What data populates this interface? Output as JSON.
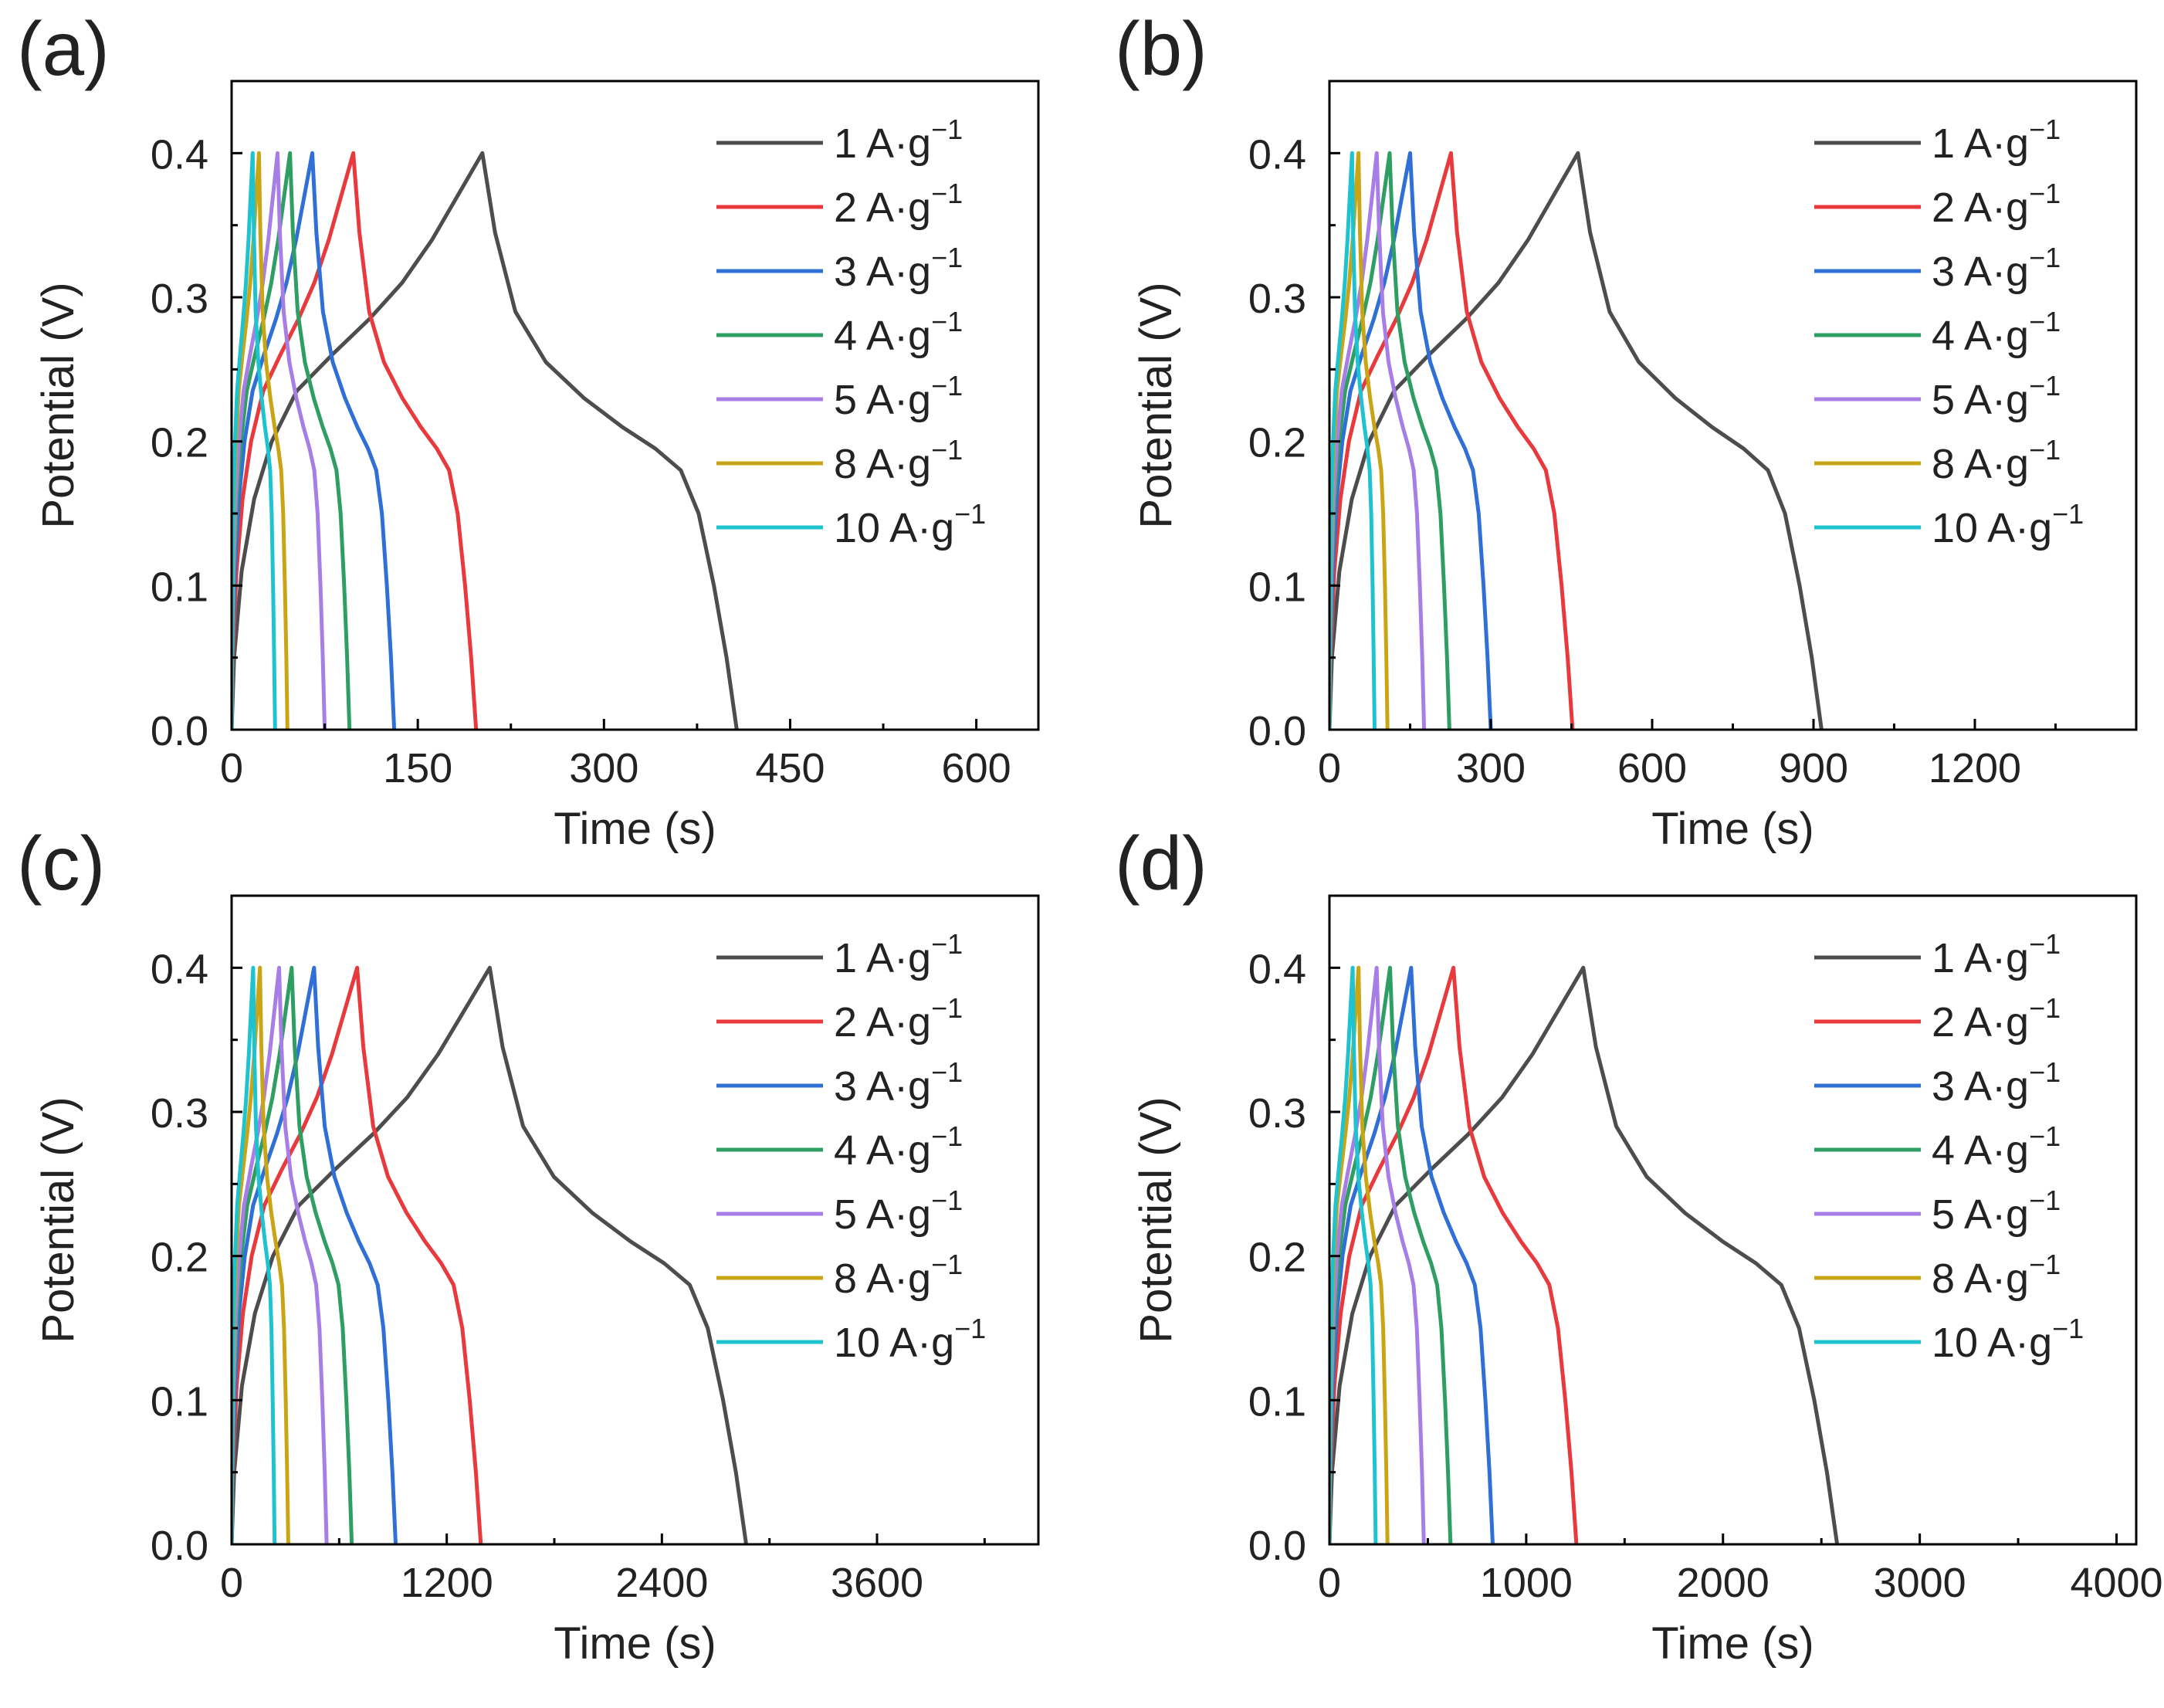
{
  "figure": {
    "ylabel": "Potential (V)",
    "xlabel": "Time (s)",
    "series_colors": [
      "#4d4d4d",
      "#e8393d",
      "#2f6fd6",
      "#2e9e63",
      "#a77ee6",
      "#c9a515",
      "#1fc3cf"
    ],
    "legend_suffix": "A·g",
    "legend_exponent": "−1"
  },
  "chart_data": [
    {
      "label": "(a)",
      "type": "line",
      "title": "",
      "xlabel": "Time (s)",
      "ylabel": "Potential (V)",
      "xlim": [
        0,
        650
      ],
      "ylim": [
        0,
        0.45
      ],
      "xticks": [
        0,
        150,
        300,
        450,
        600
      ],
      "yticks": [
        0.0,
        0.1,
        0.2,
        0.3,
        0.4
      ],
      "legend_position": "top-right",
      "series": [
        {
          "name": "1 A·g−1",
          "current": "1",
          "charge_end": 202,
          "discharge_end": 407
        },
        {
          "name": "2 A·g−1",
          "current": "2",
          "charge_end": 98,
          "discharge_end": 197
        },
        {
          "name": "3 A·g−1",
          "current": "3",
          "charge_end": 65,
          "discharge_end": 131
        },
        {
          "name": "4 A·g−1",
          "current": "4",
          "charge_end": 47,
          "discharge_end": 95
        },
        {
          "name": "5 A·g−1",
          "current": "5",
          "charge_end": 37,
          "discharge_end": 75
        },
        {
          "name": "8 A·g−1",
          "current": "8",
          "charge_end": 22,
          "discharge_end": 45
        },
        {
          "name": "10 A·g−1",
          "current": "10",
          "charge_end": 17,
          "discharge_end": 35
        }
      ]
    },
    {
      "label": "(b)",
      "type": "line",
      "title": "",
      "xlabel": "Time (s)",
      "ylabel": "Potential (V)",
      "xlim": [
        0,
        1500
      ],
      "ylim": [
        0,
        0.45
      ],
      "xticks": [
        0,
        300,
        600,
        900,
        1200
      ],
      "yticks": [
        0.0,
        0.1,
        0.2,
        0.3,
        0.4
      ],
      "legend_position": "top-right",
      "series": [
        {
          "name": "1 A·g−1",
          "current": "1",
          "charge_end": 462,
          "discharge_end": 915
        },
        {
          "name": "2 A·g−1",
          "current": "2",
          "charge_end": 226,
          "discharge_end": 452
        },
        {
          "name": "3 A·g−1",
          "current": "3",
          "charge_end": 150,
          "discharge_end": 300
        },
        {
          "name": "4 A·g−1",
          "current": "4",
          "charge_end": 112,
          "discharge_end": 223
        },
        {
          "name": "5 A·g−1",
          "current": "5",
          "charge_end": 88,
          "discharge_end": 176
        },
        {
          "name": "8 A·g−1",
          "current": "8",
          "charge_end": 54,
          "discharge_end": 108
        },
        {
          "name": "10 A·g−1",
          "current": "10",
          "charge_end": 42,
          "discharge_end": 84
        }
      ]
    },
    {
      "label": "(c)",
      "type": "line",
      "title": "",
      "xlabel": "Time (s)",
      "ylabel": "Potential (V)",
      "xlim": [
        0,
        4500
      ],
      "ylim": [
        0,
        0.45
      ],
      "xticks": [
        0,
        1200,
        2400,
        3600
      ],
      "yticks": [
        0.0,
        0.1,
        0.2,
        0.3,
        0.4
      ],
      "legend_position": "top-right",
      "series": [
        {
          "name": "1 A·g−1",
          "current": "1",
          "charge_end": 1440,
          "discharge_end": 2870
        },
        {
          "name": "2 A·g−1",
          "current": "2",
          "charge_end": 700,
          "discharge_end": 1390
        },
        {
          "name": "3 A·g−1",
          "current": "3",
          "charge_end": 460,
          "discharge_end": 915
        },
        {
          "name": "4 A·g−1",
          "current": "4",
          "charge_end": 335,
          "discharge_end": 670
        },
        {
          "name": "5 A·g−1",
          "current": "5",
          "charge_end": 265,
          "discharge_end": 530
        },
        {
          "name": "8 A·g−1",
          "current": "8",
          "charge_end": 158,
          "discharge_end": 316
        },
        {
          "name": "10 A·g−1",
          "current": "10",
          "charge_end": 120,
          "discharge_end": 240
        }
      ]
    },
    {
      "label": "(d)",
      "type": "line",
      "title": "",
      "xlabel": "Time (s)",
      "ylabel": "Potential (V)",
      "xlim": [
        0,
        4100
      ],
      "ylim": [
        0,
        0.45
      ],
      "xticks": [
        0,
        1000,
        2000,
        3000,
        4000
      ],
      "yticks": [
        0.0,
        0.1,
        0.2,
        0.3,
        0.4
      ],
      "legend_position": "top-right",
      "series": [
        {
          "name": "1 A·g−1",
          "current": "1",
          "charge_end": 1290,
          "discharge_end": 2580
        },
        {
          "name": "2 A·g−1",
          "current": "2",
          "charge_end": 630,
          "discharge_end": 1255
        },
        {
          "name": "3 A·g−1",
          "current": "3",
          "charge_end": 415,
          "discharge_end": 830
        },
        {
          "name": "4 A·g−1",
          "current": "4",
          "charge_end": 308,
          "discharge_end": 615
        },
        {
          "name": "5 A·g−1",
          "current": "5",
          "charge_end": 240,
          "discharge_end": 480
        },
        {
          "name": "8 A·g−1",
          "current": "8",
          "charge_end": 148,
          "discharge_end": 295
        },
        {
          "name": "10 A·g−1",
          "current": "10",
          "charge_end": 118,
          "discharge_end": 235
        }
      ]
    }
  ]
}
